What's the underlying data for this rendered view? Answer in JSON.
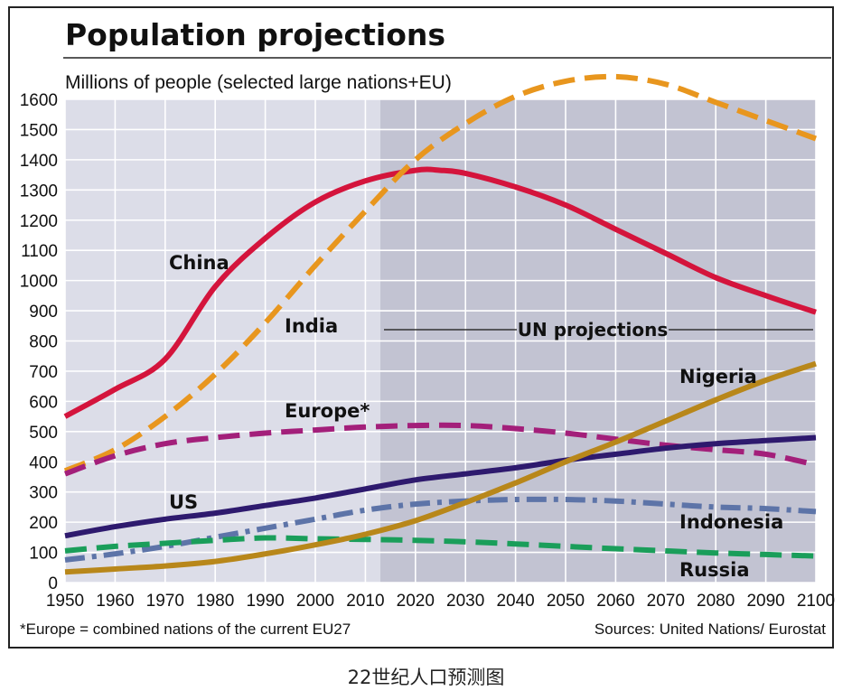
{
  "chart_data": {
    "type": "line",
    "title": "Population projections",
    "subtitle": "Millions of people (selected large nations+EU)",
    "x_ticks": [
      1950,
      1960,
      1970,
      1980,
      1990,
      2000,
      2010,
      2020,
      2030,
      2040,
      2050,
      2060,
      2070,
      2080,
      2090,
      2100
    ],
    "y_ticks": [
      0,
      100,
      200,
      300,
      400,
      500,
      600,
      700,
      800,
      900,
      1000,
      1100,
      1200,
      1300,
      1400,
      1500,
      1600
    ],
    "xlim": [
      1950,
      2100
    ],
    "ylim": [
      0,
      1600
    ],
    "grid": true,
    "projection_start": 2013,
    "projection_label": "UN projections",
    "footnote": "*Europe = combined nations of the current EU27",
    "source": "Sources: United Nations/ Eurostat",
    "series": [
      {
        "name": "China",
        "color": "#d4143c",
        "style": "solid",
        "x": [
          1950,
          1960,
          1970,
          1980,
          1990,
          2000,
          2010,
          2020,
          2025,
          2030,
          2040,
          2050,
          2060,
          2070,
          2080,
          2090,
          2100
        ],
        "values": [
          550,
          640,
          740,
          980,
          1140,
          1260,
          1330,
          1365,
          1365,
          1355,
          1310,
          1250,
          1170,
          1090,
          1010,
          950,
          895
        ]
      },
      {
        "name": "India",
        "color": "#e8961e",
        "style": "dashed",
        "x": [
          1950,
          1960,
          1970,
          1980,
          1990,
          2000,
          2010,
          2020,
          2030,
          2040,
          2050,
          2060,
          2070,
          2080,
          2090,
          2100
        ],
        "values": [
          370,
          440,
          550,
          690,
          860,
          1050,
          1230,
          1400,
          1520,
          1610,
          1660,
          1675,
          1650,
          1590,
          1530,
          1470
        ]
      },
      {
        "name": "Europe*",
        "color": "#a31f7a",
        "style": "dashed",
        "x": [
          1950,
          1960,
          1970,
          1980,
          1990,
          2000,
          2010,
          2020,
          2030,
          2040,
          2050,
          2060,
          2070,
          2080,
          2090,
          2100
        ],
        "values": [
          360,
          420,
          460,
          480,
          495,
          505,
          515,
          520,
          520,
          510,
          495,
          475,
          455,
          440,
          425,
          390
        ]
      },
      {
        "name": "US",
        "color": "#2e1a6e",
        "style": "solid",
        "x": [
          1950,
          1960,
          1970,
          1980,
          1990,
          2000,
          2010,
          2020,
          2030,
          2040,
          2050,
          2060,
          2070,
          2080,
          2090,
          2100
        ],
        "values": [
          155,
          185,
          210,
          230,
          255,
          280,
          310,
          340,
          360,
          380,
          405,
          425,
          445,
          460,
          470,
          480
        ]
      },
      {
        "name": "Indonesia",
        "color": "#5d74a8",
        "style": "dashdot",
        "x": [
          1950,
          1960,
          1970,
          1980,
          1990,
          2000,
          2010,
          2020,
          2030,
          2040,
          2050,
          2060,
          2070,
          2080,
          2090,
          2100
        ],
        "values": [
          75,
          95,
          120,
          150,
          180,
          210,
          240,
          260,
          270,
          275,
          275,
          270,
          260,
          250,
          245,
          235
        ]
      },
      {
        "name": "Russia",
        "color": "#1a9e5a",
        "style": "dashed",
        "x": [
          1950,
          1960,
          1970,
          1980,
          1990,
          2000,
          2010,
          2020,
          2030,
          2040,
          2050,
          2060,
          2070,
          2080,
          2090,
          2100
        ],
        "values": [
          105,
          120,
          130,
          140,
          148,
          145,
          143,
          140,
          135,
          128,
          120,
          112,
          105,
          98,
          93,
          88
        ]
      },
      {
        "name": "Nigeria",
        "color": "#b8871a",
        "style": "solid",
        "x": [
          1950,
          1960,
          1970,
          1980,
          1990,
          2000,
          2010,
          2020,
          2030,
          2040,
          2050,
          2060,
          2070,
          2080,
          2090,
          2100
        ],
        "values": [
          35,
          45,
          55,
          70,
          95,
          125,
          160,
          205,
          265,
          330,
          400,
          465,
          535,
          605,
          670,
          725
        ]
      }
    ]
  },
  "caption": "22世纪人口预测图"
}
